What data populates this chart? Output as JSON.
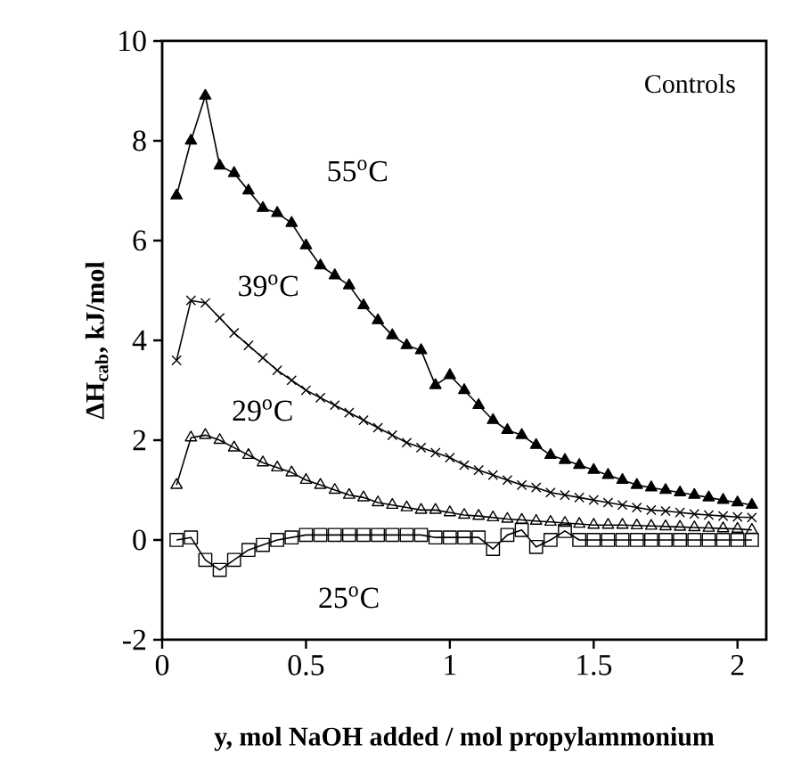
{
  "chart_data": {
    "type": "line",
    "xlabel": "y, mol NaOH added / mol propylammonium",
    "ylabel": "ΔH$_{cab}$, kJ/mol",
    "annotations": [
      "Controls"
    ],
    "xlim": [
      0,
      2.1
    ],
    "ylim": [
      -2,
      10
    ],
    "xticks": [
      0,
      0.5,
      1,
      1.5,
      2
    ],
    "yticks": [
      -2,
      0,
      2,
      4,
      6,
      8,
      10
    ],
    "x": [
      0.05,
      0.1,
      0.15,
      0.2,
      0.25,
      0.3,
      0.35,
      0.4,
      0.45,
      0.5,
      0.55,
      0.6,
      0.65,
      0.7,
      0.75,
      0.8,
      0.85,
      0.9,
      0.95,
      1.0,
      1.05,
      1.1,
      1.15,
      1.2,
      1.25,
      1.3,
      1.35,
      1.4,
      1.45,
      1.5,
      1.55,
      1.6,
      1.65,
      1.7,
      1.75,
      1.8,
      1.85,
      1.9,
      1.95,
      2.0,
      2.05
    ],
    "series": [
      {
        "name": "55$^{o}$C",
        "color": "#000000",
        "marker": "triangle",
        "values": [
          6.9,
          8.0,
          8.9,
          7.5,
          7.35,
          7.0,
          6.65,
          6.55,
          6.35,
          5.9,
          5.5,
          5.3,
          5.1,
          4.7,
          4.4,
          4.1,
          3.9,
          3.8,
          3.1,
          3.3,
          3.0,
          2.7,
          2.4,
          2.2,
          2.1,
          1.9,
          1.7,
          1.6,
          1.5,
          1.4,
          1.3,
          1.2,
          1.1,
          1.05,
          1.0,
          0.95,
          0.9,
          0.85,
          0.8,
          0.75,
          0.7
        ]
      },
      {
        "name": "39$^{o}$C",
        "color": "#000000",
        "marker": "cross",
        "values": [
          3.6,
          4.8,
          4.75,
          4.45,
          4.15,
          3.9,
          3.65,
          3.4,
          3.2,
          3.0,
          2.85,
          2.7,
          2.55,
          2.4,
          2.25,
          2.1,
          1.95,
          1.85,
          1.75,
          1.65,
          1.5,
          1.4,
          1.3,
          1.2,
          1.1,
          1.05,
          0.95,
          0.9,
          0.85,
          0.8,
          0.75,
          0.7,
          0.65,
          0.6,
          0.58,
          0.55,
          0.52,
          0.5,
          0.48,
          0.46,
          0.45
        ]
      },
      {
        "name": "29$^{o}$C",
        "color": "#000000",
        "marker": "triangle",
        "values": [
          1.1,
          2.05,
          2.1,
          2.0,
          1.85,
          1.7,
          1.55,
          1.45,
          1.35,
          1.2,
          1.1,
          1.0,
          0.9,
          0.85,
          0.75,
          0.7,
          0.65,
          0.6,
          0.6,
          0.55,
          0.5,
          0.48,
          0.45,
          0.42,
          0.4,
          0.38,
          0.36,
          0.34,
          0.32,
          0.3,
          0.3,
          0.3,
          0.29,
          0.28,
          0.27,
          0.26,
          0.25,
          0.24,
          0.23,
          0.22,
          0.2
        ]
      },
      {
        "name": "25$^{o}$C",
        "color": "#000000",
        "marker": "square",
        "values": [
          0.0,
          0.05,
          -0.4,
          -0.6,
          -0.4,
          -0.2,
          -0.1,
          0.0,
          0.05,
          0.1,
          0.1,
          0.1,
          0.1,
          0.1,
          0.1,
          0.1,
          0.1,
          0.1,
          0.05,
          0.05,
          0.05,
          0.05,
          -0.18,
          0.1,
          0.2,
          -0.14,
          0.0,
          0.18,
          0.0,
          0.0,
          0.0,
          0.0,
          0.0,
          0.0,
          0.0,
          0.0,
          0.0,
          0.0,
          0.0,
          0.0,
          0.0
        ]
      }
    ]
  }
}
